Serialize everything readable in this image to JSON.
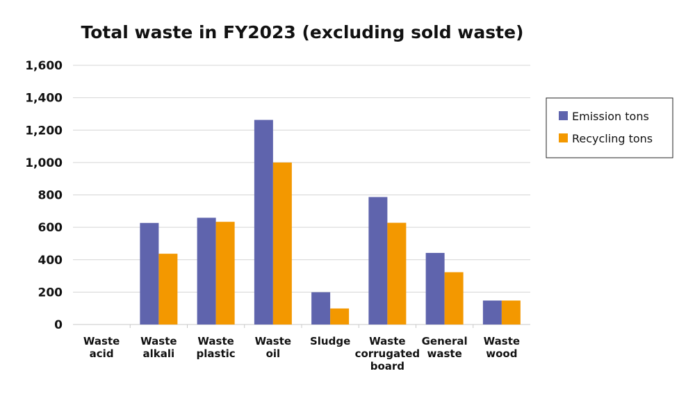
{
  "chart_data": {
    "type": "bar",
    "title": "Total waste in FY2023 (excluding sold waste)",
    "xlabel": "",
    "ylabel": "",
    "ylim": [
      0,
      1600
    ],
    "y_ticks": [
      0,
      200,
      400,
      600,
      800,
      1000,
      1200,
      1400,
      1600
    ],
    "y_tick_labels": [
      "0",
      "200",
      "400",
      "600",
      "800",
      "1,000",
      "1,200",
      "1,400",
      "1,600"
    ],
    "grid": true,
    "legend_position": "right",
    "categories": [
      [
        "Waste",
        "acid"
      ],
      [
        "Waste",
        "alkali"
      ],
      [
        "Waste",
        "plastic"
      ],
      [
        "Waste",
        "oil"
      ],
      [
        "Sludge"
      ],
      [
        "Waste",
        "corrugated",
        "board"
      ],
      [
        "General",
        "waste"
      ],
      [
        "Waste",
        "wood"
      ]
    ],
    "series": [
      {
        "name": "Emission tons",
        "color": "#5f64ad",
        "values": [
          0,
          627,
          659,
          1263,
          199,
          787,
          442,
          148
        ]
      },
      {
        "name": "Recycling tons",
        "color": "#f39800",
        "values": [
          0,
          437,
          634,
          1000,
          99,
          628,
          323,
          148
        ]
      }
    ]
  }
}
